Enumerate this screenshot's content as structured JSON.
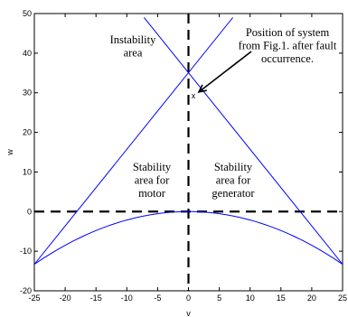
{
  "chart_data": {
    "type": "line",
    "xlabel": "v",
    "ylabel": "w",
    "xlim": [
      -25,
      25
    ],
    "ylim": [
      -20,
      50
    ],
    "grid": false,
    "xticks": [
      "-25",
      "-20",
      "-15",
      "-10",
      "-5",
      "0",
      "5",
      "10",
      "15",
      "20",
      "25"
    ],
    "yticks": [
      "-20",
      "-10",
      "0",
      "10",
      "20",
      "30",
      "40",
      "50"
    ],
    "series": [
      {
        "curve": "parabola",
        "x": [
          -25,
          -20,
          -15,
          -10,
          -5,
          0,
          5,
          10,
          15,
          20,
          25
        ],
        "y": [
          -13.3,
          -8.5,
          -4.8,
          -2.1,
          -0.5,
          0,
          -0.5,
          -2.1,
          -4.8,
          -8.5,
          -13.3
        ]
      },
      {
        "curve": "line",
        "x": [
          -25,
          7.2
        ],
        "y": [
          -13.3,
          49
        ]
      },
      {
        "curve": "line",
        "x": [
          -7.2,
          25
        ],
        "y": [
          49,
          -13.3
        ]
      }
    ],
    "reference_lines": [
      {
        "orientation": "horizontal",
        "value": 0,
        "style": "dashed"
      },
      {
        "orientation": "vertical",
        "value": 0,
        "style": "dashed"
      }
    ],
    "marker": {
      "label": "x",
      "x": 0.8,
      "y": 29.5
    },
    "annotations": {
      "instability": [
        "Instability",
        "area"
      ],
      "motor": [
        "Stability",
        "area for",
        "motor"
      ],
      "generator": [
        "Stability",
        "area for",
        "generator"
      ],
      "system": [
        "Position of system",
        "from Fig.1. after fault",
        "occurrence."
      ]
    }
  }
}
